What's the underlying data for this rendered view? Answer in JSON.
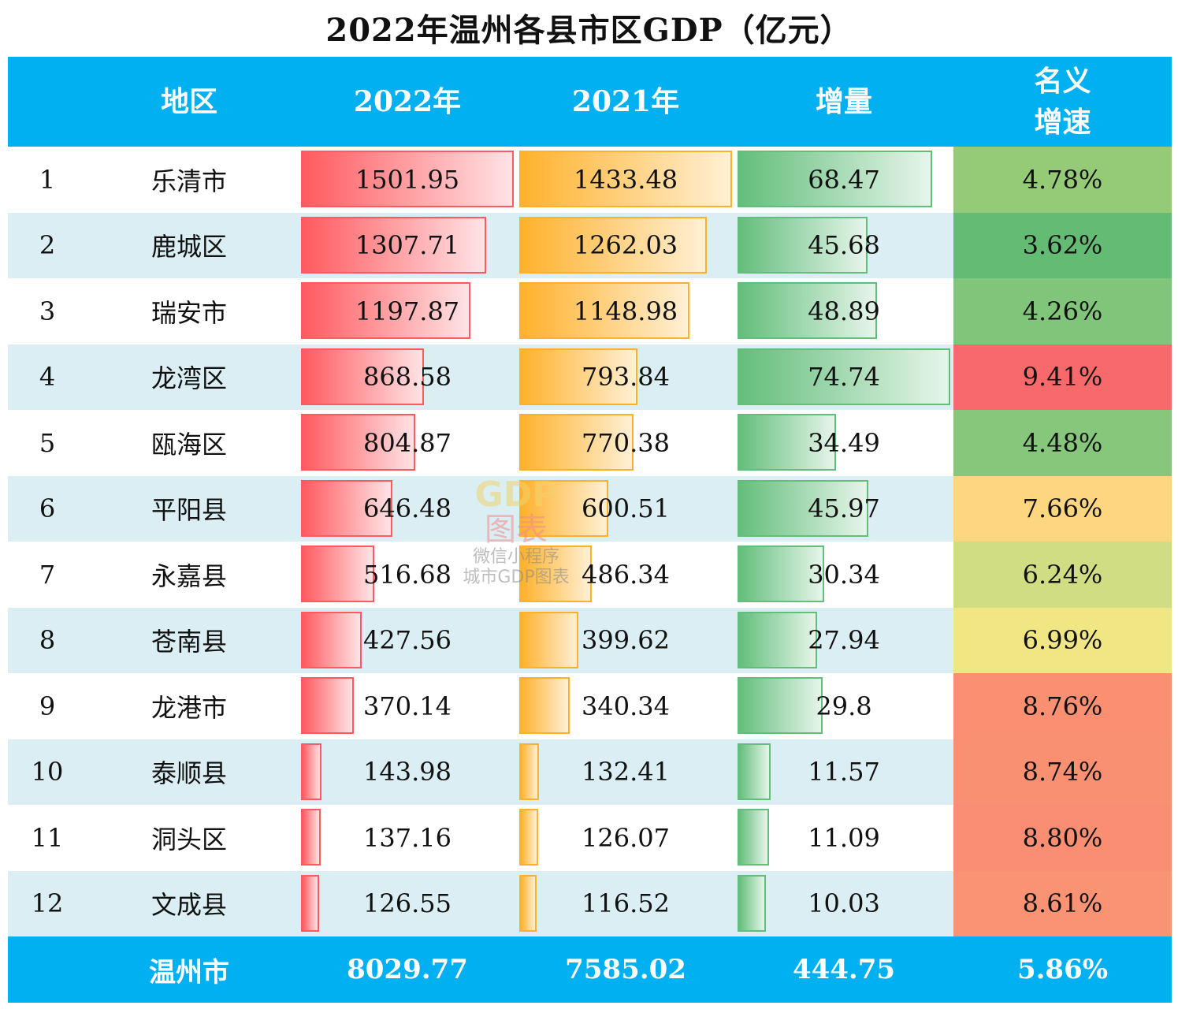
{
  "chart_data": {
    "type": "table",
    "title": "2022年温州各县市区GDP（亿元）",
    "columns": [
      "",
      "地区",
      "2022年",
      "2021年",
      "增量",
      "名义\n增速"
    ],
    "column_lines": [
      "名义",
      "增速"
    ],
    "rows": [
      {
        "rank": "1",
        "region": "乐清市",
        "gdp2022": 1501.95,
        "gdp2021": 1433.48,
        "increase": 68.47,
        "growth": "4.78%",
        "growth_color": "#95cb77"
      },
      {
        "rank": "2",
        "region": "鹿城区",
        "gdp2022": 1307.71,
        "gdp2021": 1262.03,
        "increase": 45.68,
        "growth": "3.62%",
        "growth_color": "#63bb74"
      },
      {
        "rank": "3",
        "region": "瑞安市",
        "gdp2022": 1197.87,
        "gdp2021": 1148.98,
        "increase": 48.89,
        "growth": "4.26%",
        "growth_color": "#80c57a"
      },
      {
        "rank": "4",
        "region": "龙湾区",
        "gdp2022": 868.58,
        "gdp2021": 793.84,
        "increase": 74.74,
        "growth": "9.41%",
        "growth_color": "#f8696b"
      },
      {
        "rank": "5",
        "region": "瓯海区",
        "gdp2022": 804.87,
        "gdp2021": 770.38,
        "increase": 34.49,
        "growth": "4.48%",
        "growth_color": "#86c77b"
      },
      {
        "rank": "6",
        "region": "平阳县",
        "gdp2022": 646.48,
        "gdp2021": 600.51,
        "increase": 45.97,
        "growth": "7.66%",
        "growth_color": "#fdd67f"
      },
      {
        "rank": "7",
        "region": "永嘉县",
        "gdp2022": 516.68,
        "gdp2021": 486.34,
        "increase": 30.34,
        "growth": "6.24%",
        "growth_color": "#d0dd82"
      },
      {
        "rank": "8",
        "region": "苍南县",
        "gdp2022": 427.56,
        "gdp2021": 399.62,
        "increase": 27.94,
        "growth": "6.99%",
        "growth_color": "#f0e683"
      },
      {
        "rank": "9",
        "region": "龙港市",
        "gdp2022": 370.14,
        "gdp2021": 340.34,
        "increase": 29.8,
        "growth": "8.76%",
        "growth_color": "#fa8f72"
      },
      {
        "rank": "10",
        "region": "泰顺县",
        "gdp2022": 143.98,
        "gdp2021": 132.41,
        "increase": 11.57,
        "growth": "8.74%",
        "growth_color": "#fa9072"
      },
      {
        "rank": "11",
        "region": "洞头区",
        "gdp2022": 137.16,
        "gdp2021": 126.07,
        "increase": 11.09,
        "growth": "8.80%",
        "growth_color": "#fa8e72"
      },
      {
        "rank": "12",
        "region": "文成县",
        "gdp2022": 126.55,
        "gdp2021": 116.52,
        "increase": 10.03,
        "growth": "8.61%",
        "growth_color": "#fa9373"
      }
    ],
    "total": {
      "region": "温州市",
      "gdp2022": "8029.77",
      "gdp2021": "7585.02",
      "increase": "444.75",
      "growth": "5.86%"
    },
    "bar_colors": {
      "gdp2022": "#ff5a5f",
      "gdp2021": "#ffb12c",
      "increase": "#63be7b"
    },
    "header_color": "#00b0f0",
    "alt_row_color": "#daeef3"
  },
  "watermark": {
    "line1": "GDP",
    "line2": "图表",
    "line3": "微信小程序",
    "line4": "城市GDP图表"
  }
}
